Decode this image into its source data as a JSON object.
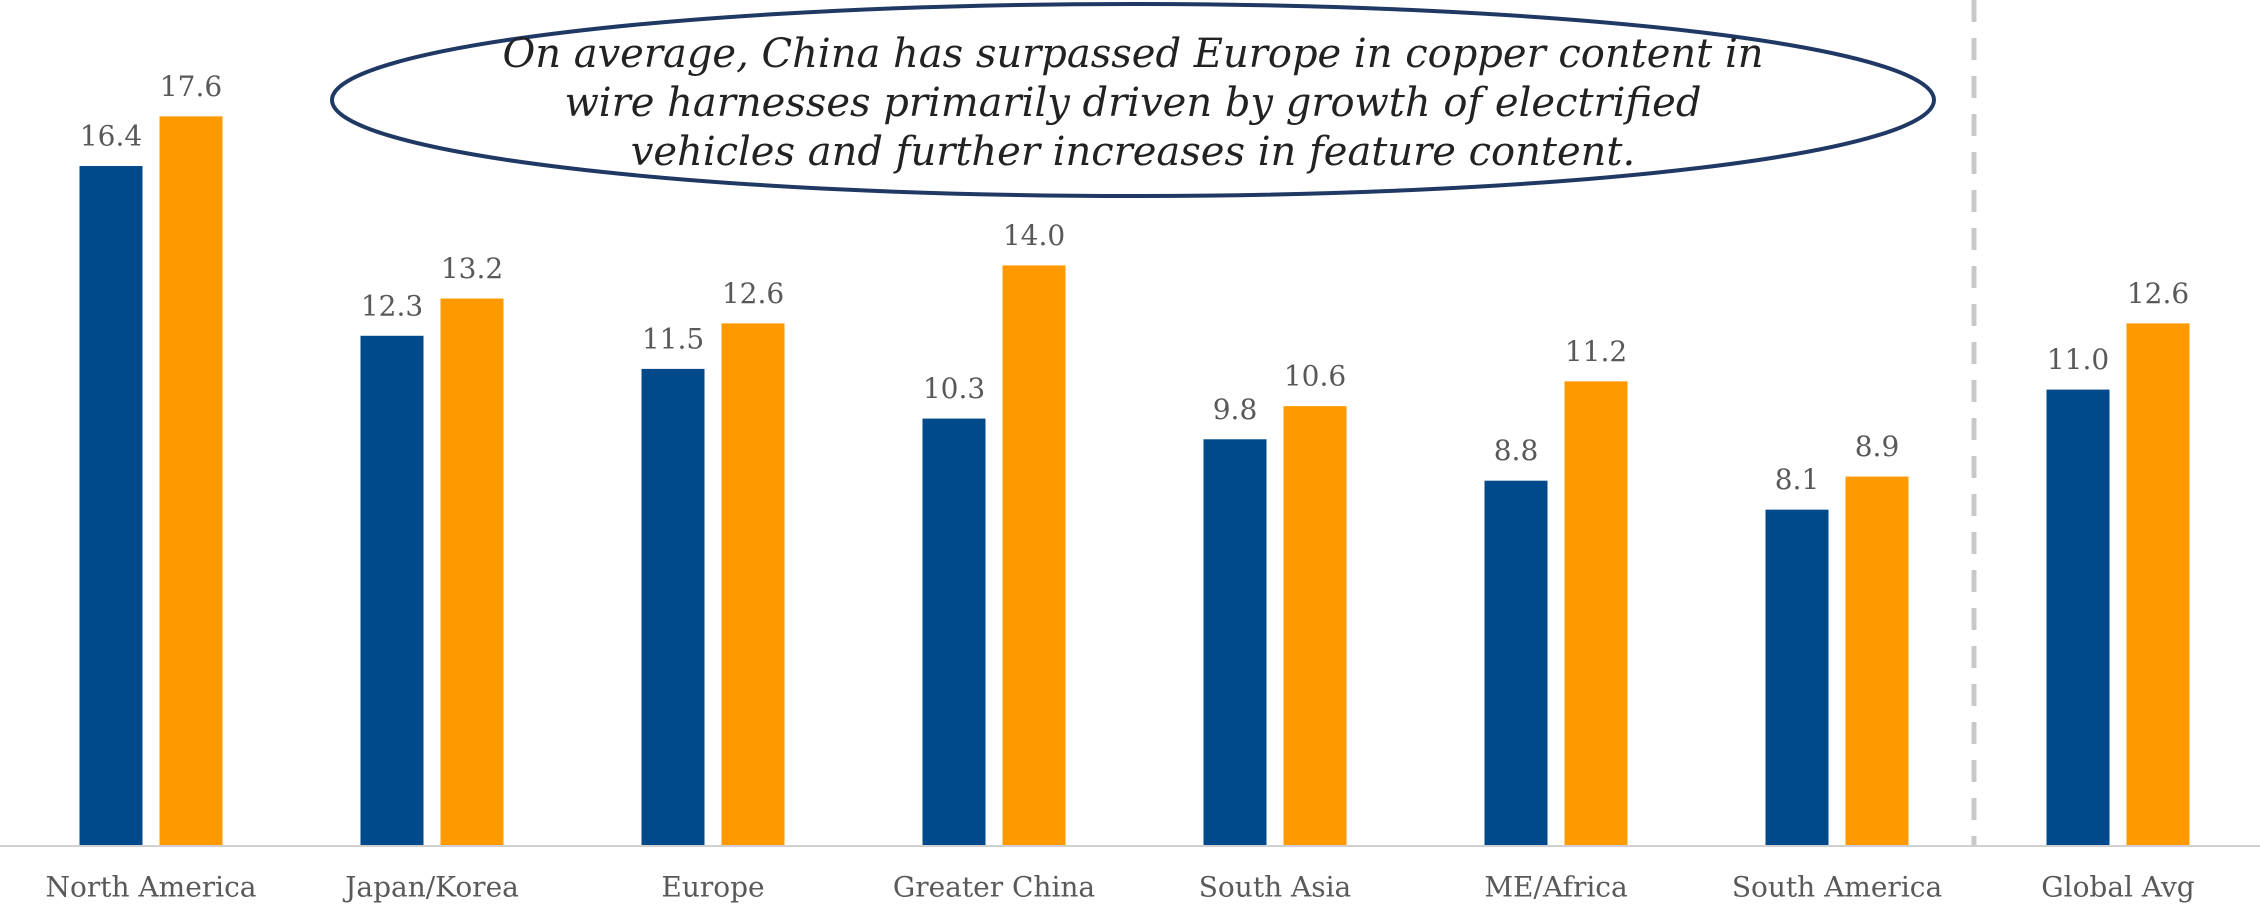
{
  "chart_data": {
    "type": "bar",
    "annotation_lines": [
      "On average, China has surpassed Europe in copper content in",
      "wire harnesses primarily driven by growth of electrified",
      "vehicles and further increases in feature content."
    ],
    "categories": [
      "North America",
      "Japan/Korea",
      "Europe",
      "Greater China",
      "South Asia",
      "ME/Africa",
      "South America",
      "Global Avg"
    ],
    "series": [
      {
        "color": "#004a8c",
        "values": [
          16.4,
          12.3,
          11.5,
          10.3,
          9.8,
          8.8,
          8.1,
          11.0
        ],
        "value_labels": [
          "16.4",
          "12.3",
          "11.5",
          "10.3",
          "9.8",
          "8.8",
          "8.1",
          "11.0"
        ]
      },
      {
        "color": "#ff9900",
        "values": [
          17.6,
          13.2,
          12.6,
          14.0,
          10.6,
          11.2,
          8.9,
          12.6
        ],
        "value_labels": [
          "17.6",
          "13.2",
          "12.6",
          "14.0",
          "10.6",
          "11.2",
          "8.9",
          "12.6"
        ]
      }
    ],
    "ylim": [
      0,
      20
    ]
  }
}
